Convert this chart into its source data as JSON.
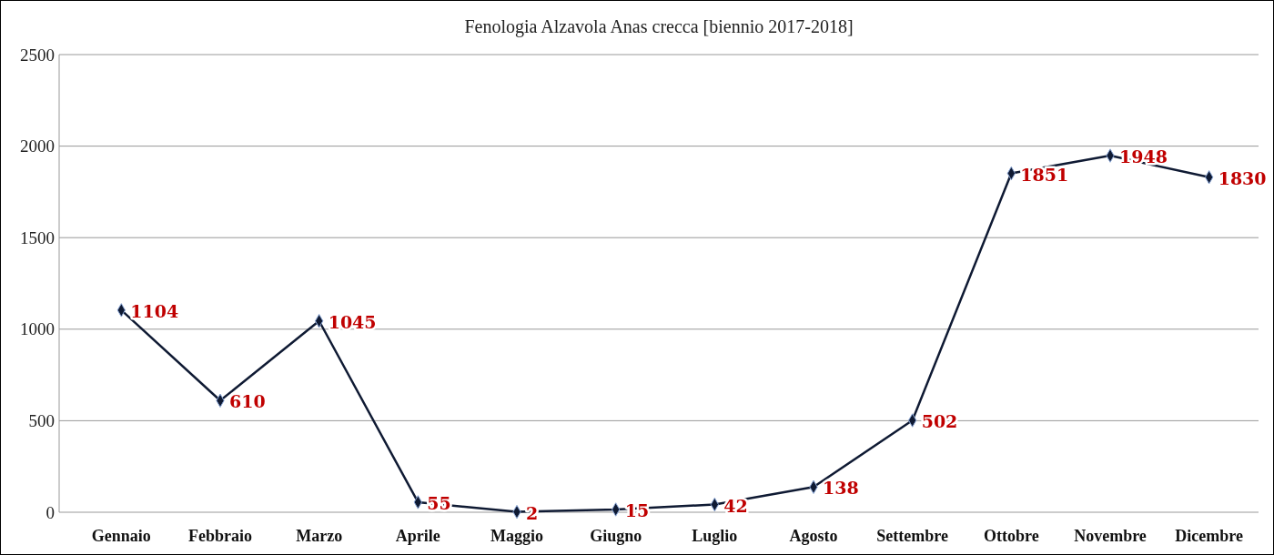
{
  "chart_data": {
    "type": "line",
    "title": "Fenologia Alzavola Anas crecca [biennio 2017-2018]",
    "categories": [
      "Gennaio",
      "Febbraio",
      "Marzo",
      "Aprile",
      "Maggio",
      "Giugno",
      "Luglio",
      "Agosto",
      "Settembre",
      "Ottobre",
      "Novembre",
      "Dicembre"
    ],
    "series": [
      {
        "color": "#0f1a33",
        "values": [
          1104,
          610,
          1045,
          55,
          2,
          15,
          42,
          138,
          502,
          1851,
          1948,
          1830
        ]
      }
    ],
    "ylim": [
      0,
      2500
    ],
    "yticks": [
      0,
      500,
      1000,
      1500,
      2000,
      2500
    ],
    "grid": "y",
    "marker": "diamond",
    "line_style": "solid",
    "data_labels": true
  }
}
